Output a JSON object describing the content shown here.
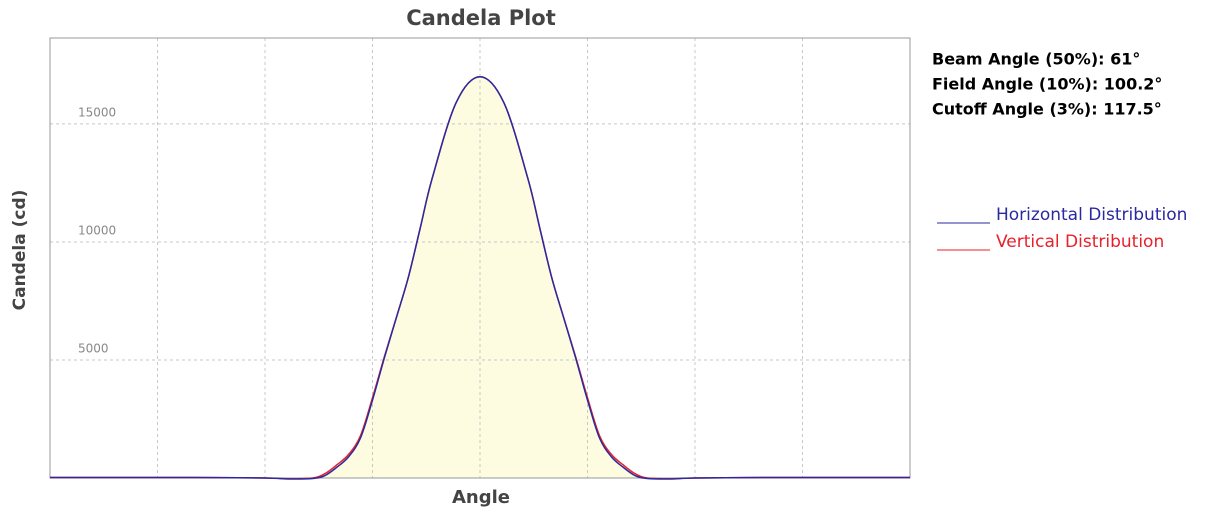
{
  "chart_data": {
    "type": "line",
    "title": "Candela Plot",
    "x_label": "Angle",
    "y_label": "Candela (cd)",
    "annotations": [
      "Beam Angle (50%): 61°",
      "Field Angle (10%): 100.2°",
      "Cutoff Angle (3%): 117.5°"
    ],
    "x": [
      -180,
      -150,
      -120,
      -90,
      -80,
      -70,
      -65,
      -60,
      -55,
      -50,
      -45,
      -40,
      -35,
      -30,
      -25,
      -20,
      -10,
      0,
      10,
      20,
      25,
      30,
      35,
      40,
      45,
      50,
      55,
      60,
      65,
      70,
      80,
      90,
      120,
      150,
      180
    ],
    "series": [
      {
        "name": "Horizontal Distribution",
        "color": "#2a2aa0",
        "fill": "#fdfbe0",
        "values": [
          20,
          20,
          20,
          0,
          -40,
          -20,
          100,
          450,
          900,
          1700,
          3300,
          5100,
          6800,
          8500,
          10600,
          12700,
          15900,
          17000,
          15900,
          12700,
          10600,
          8500,
          6800,
          5100,
          3300,
          1700,
          900,
          450,
          100,
          -20,
          -40,
          0,
          20,
          20,
          20
        ]
      },
      {
        "name": "Vertical Distribution",
        "color": "#e8202a",
        "values": [
          20,
          20,
          20,
          0,
          -30,
          0,
          180,
          550,
          1000,
          1800,
          3400,
          5150,
          6800,
          8500,
          10600,
          12700,
          15900,
          17000,
          15900,
          12700,
          10600,
          8500,
          6800,
          5150,
          3400,
          1800,
          1000,
          550,
          180,
          0,
          -30,
          0,
          20,
          20,
          20
        ]
      }
    ],
    "xlim": [
      -180,
      180
    ],
    "xticks": [
      -135,
      -90,
      -45,
      0,
      45,
      90,
      135
    ],
    "ylim": [
      0,
      18640
    ],
    "yticks": [
      5000,
      10000,
      15000
    ],
    "grid": true,
    "legend": "right"
  }
}
